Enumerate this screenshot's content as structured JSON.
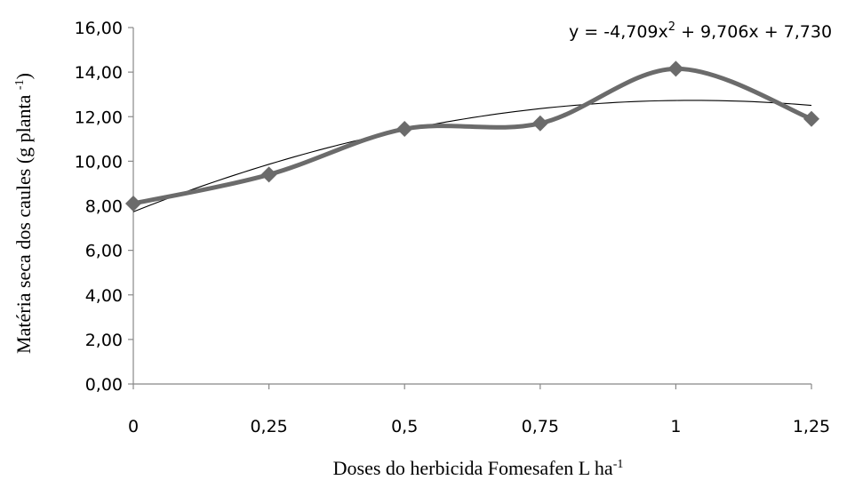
{
  "chart_data": {
    "type": "line",
    "x": [
      0,
      0.25,
      0.5,
      0.75,
      1,
      1.25
    ],
    "x_tick_labels": [
      "0",
      "0,25",
      "0,5",
      "0,75",
      "1",
      "1,25"
    ],
    "series": [
      {
        "values": [
          8.1,
          9.4,
          11.45,
          11.7,
          14.15,
          11.9
        ],
        "color": "#6b6b6b",
        "marker": "diamond"
      }
    ],
    "fit": {
      "coefficients": {
        "a": -4.709,
        "b": 9.706,
        "c": 7.73
      },
      "color": "#000000",
      "equation_prefix": "y = -4,709x",
      "equation_sup": "2",
      "equation_suffix": " + 9,706x + 7,730"
    },
    "ylim": [
      0,
      16
    ],
    "y_ticks": [
      0,
      2,
      4,
      6,
      8,
      10,
      12,
      14,
      16
    ],
    "y_tick_labels": [
      "0,00",
      "2,00",
      "4,00",
      "6,00",
      "8,00",
      "10,00",
      "12,00",
      "14,00",
      "16,00"
    ],
    "ylabel_prefix": "Matéria seca dos caules (g planta ",
    "ylabel_sup": "-1",
    "ylabel_suffix": ")",
    "xlabel_prefix": "Doses do herbicida Fomesafen L ha",
    "xlabel_sup": "-1",
    "grid": false,
    "legend": "none"
  }
}
